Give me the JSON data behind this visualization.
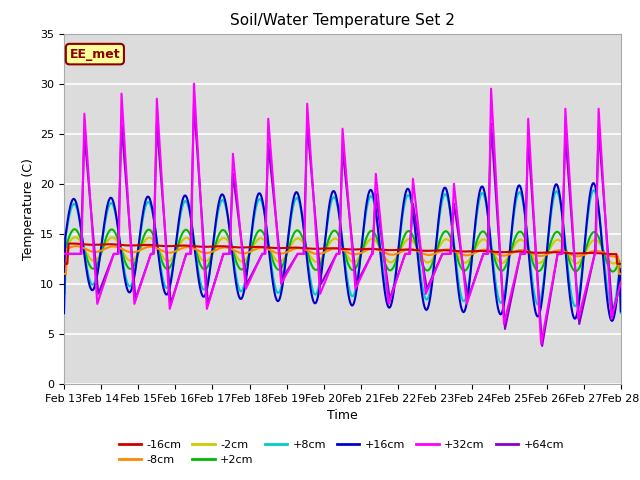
{
  "title": "Soil/Water Temperature Set 2",
  "xlabel": "Time",
  "ylabel": "Temperature (C)",
  "ylim": [
    0,
    35
  ],
  "background_color": "#dcdcdc",
  "grid_color": "white",
  "annotation_text": "EE_met",
  "annotation_bg": "#ffff99",
  "annotation_border": "#8b0000",
  "x_tick_labels": [
    "Feb 13",
    "Feb 14",
    "Feb 15",
    "Feb 16",
    "Feb 17",
    "Feb 18",
    "Feb 19",
    "Feb 20",
    "Feb 21",
    "Feb 22",
    "Feb 23",
    "Feb 24",
    "Feb 25",
    "Feb 26",
    "Feb 27",
    "Feb 28"
  ],
  "series": {
    "-16cm": {
      "color": "#cc0000",
      "lw": 1.5
    },
    "-8cm": {
      "color": "#ff8800",
      "lw": 1.5
    },
    "-2cm": {
      "color": "#cccc00",
      "lw": 1.5
    },
    "+2cm": {
      "color": "#00bb00",
      "lw": 1.5
    },
    "+8cm": {
      "color": "#00cccc",
      "lw": 1.5
    },
    "+16cm": {
      "color": "#0000cc",
      "lw": 1.5
    },
    "+32cm": {
      "color": "#ff00ff",
      "lw": 1.5
    },
    "+64cm": {
      "color": "#8800cc",
      "lw": 1.5
    }
  }
}
